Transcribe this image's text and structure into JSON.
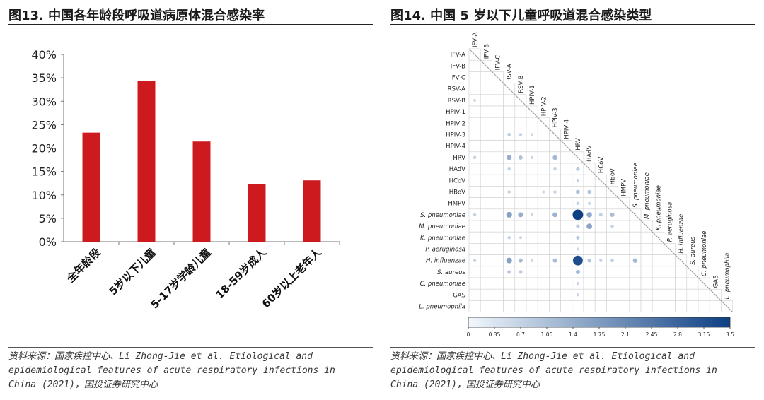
{
  "left": {
    "title": "图13. 中国各年龄段呼吸道病原体混合感染率",
    "source_lines": [
      "资料来源：国家疾控中心、Li Zhong-Jie et al. Etiological and",
      "epidemiological features of acute respiratory infections in",
      "China (2021)，国投证券研究中心"
    ],
    "chart_data": {
      "type": "bar",
      "categories": [
        "全年龄段",
        "5岁以下儿童",
        "5-17岁学龄儿童",
        "18-59岁成人",
        "60岁以上老年人"
      ],
      "values": [
        23.3,
        34.3,
        21.4,
        12.3,
        13.1
      ],
      "ylim": [
        0,
        40
      ],
      "yticks": [
        "0%",
        "5%",
        "10%",
        "15%",
        "20%",
        "25%",
        "30%",
        "35%",
        "40%"
      ],
      "bar_color": "#cc1a1f",
      "grid": false
    }
  },
  "right": {
    "title": "图14. 中国 5 岁以下儿童呼吸道混合感染类型",
    "source_lines": [
      "资料来源：国家疾控中心、Li Zhong-Jie et al. Etiological and",
      "epidemiological features of acute respiratory infections in",
      "China (2021)，国投证券研究中心"
    ],
    "chart_data": {
      "type": "heatmap",
      "labels": [
        "IFV-A",
        "IFV-B",
        "IFV-C",
        "RSV-A",
        "RSV-B",
        "HPIV-1",
        "HPIV-2",
        "HPIV-3",
        "HPIV-4",
        "HRV",
        "HAdV",
        "HCoV",
        "HBoV",
        "HMPV",
        "S. pneumoniae",
        "M. pneumoniae",
        "K. pneumoniae",
        "P. aeruginosa",
        "H. influenzae",
        "S. aureus",
        "C. pneumoniae",
        "GAS",
        "L. pneumophila"
      ],
      "italic_labels": [
        "S. pneumoniae",
        "M. pneumoniae",
        "K. pneumoniae",
        "P. aeruginosa",
        "H. influenzae",
        "S. aureus",
        "C. pneumoniae",
        "L. pneumophila"
      ],
      "cells": [
        {
          "row": "RSV-B",
          "col": "IFV-A",
          "value": 0.15
        },
        {
          "row": "HPIV-3",
          "col": "RSV-A",
          "value": 0.4
        },
        {
          "row": "HPIV-3",
          "col": "RSV-B",
          "value": 0.3
        },
        {
          "row": "HPIV-3",
          "col": "HPIV-1",
          "value": 0.2
        },
        {
          "row": "HRV",
          "col": "IFV-A",
          "value": 0.3
        },
        {
          "row": "HRV",
          "col": "RSV-A",
          "value": 1.1
        },
        {
          "row": "HRV",
          "col": "RSV-B",
          "value": 0.7
        },
        {
          "row": "HRV",
          "col": "HPIV-1",
          "value": 0.2
        },
        {
          "row": "HRV",
          "col": "HPIV-3",
          "value": 0.9
        },
        {
          "row": "HAdV",
          "col": "RSV-A",
          "value": 0.3
        },
        {
          "row": "HAdV",
          "col": "HPIV-3",
          "value": 0.3
        },
        {
          "row": "HAdV",
          "col": "HRV",
          "value": 0.5
        },
        {
          "row": "HCoV",
          "col": "HRV",
          "value": 0.3
        },
        {
          "row": "HBoV",
          "col": "RSV-A",
          "value": 0.3
        },
        {
          "row": "HBoV",
          "col": "HPIV-2",
          "value": 0.2
        },
        {
          "row": "HBoV",
          "col": "HPIV-3",
          "value": 0.3
        },
        {
          "row": "HBoV",
          "col": "HRV",
          "value": 0.7
        },
        {
          "row": "HBoV",
          "col": "HAdV",
          "value": 0.6
        },
        {
          "row": "HMPV",
          "col": "HRV",
          "value": 0.3
        },
        {
          "row": "HMPV",
          "col": "HAdV",
          "value": 0.2
        },
        {
          "row": "S. pneumoniae",
          "col": "IFV-A",
          "value": 0.3
        },
        {
          "row": "S. pneumoniae",
          "col": "RSV-A",
          "value": 1.4
        },
        {
          "row": "S. pneumoniae",
          "col": "RSV-B",
          "value": 1.1
        },
        {
          "row": "S. pneumoniae",
          "col": "HPIV-1",
          "value": 0.2
        },
        {
          "row": "S. pneumoniae",
          "col": "HPIV-3",
          "value": 1.0
        },
        {
          "row": "S. pneumoniae",
          "col": "HRV",
          "value": 3.5
        },
        {
          "row": "S. pneumoniae",
          "col": "HAdV",
          "value": 1.2
        },
        {
          "row": "S. pneumoniae",
          "col": "HCoV",
          "value": 0.4
        },
        {
          "row": "S. pneumoniae",
          "col": "HBoV",
          "value": 0.8
        },
        {
          "row": "M. pneumoniae",
          "col": "HRV",
          "value": 0.5
        },
        {
          "row": "M. pneumoniae",
          "col": "HAdV",
          "value": 1.3
        },
        {
          "row": "M. pneumoniae",
          "col": "HBoV",
          "value": 0.3
        },
        {
          "row": "K. pneumoniae",
          "col": "RSV-A",
          "value": 0.3
        },
        {
          "row": "K. pneumoniae",
          "col": "RSV-B",
          "value": 0.2
        },
        {
          "row": "K. pneumoniae",
          "col": "HRV",
          "value": 0.5
        },
        {
          "row": "P. aeruginosa",
          "col": "HRV",
          "value": 0.2
        },
        {
          "row": "H. influenzae",
          "col": "IFV-A",
          "value": 0.3
        },
        {
          "row": "H. influenzae",
          "col": "RSV-A",
          "value": 1.4
        },
        {
          "row": "H. influenzae",
          "col": "RSV-B",
          "value": 0.8
        },
        {
          "row": "H. influenzae",
          "col": "HPIV-1",
          "value": 0.2
        },
        {
          "row": "H. influenzae",
          "col": "HPIV-3",
          "value": 0.8
        },
        {
          "row": "H. influenzae",
          "col": "HRV",
          "value": 3.2
        },
        {
          "row": "H. influenzae",
          "col": "HAdV",
          "value": 0.6
        },
        {
          "row": "H. influenzae",
          "col": "HCoV",
          "value": 0.3
        },
        {
          "row": "H. influenzae",
          "col": "HBoV",
          "value": 0.4
        },
        {
          "row": "H. influenzae",
          "col": "S. pneumoniae",
          "value": 0.9
        },
        {
          "row": "S. aureus",
          "col": "RSV-A",
          "value": 0.5
        },
        {
          "row": "S. aureus",
          "col": "RSV-B",
          "value": 0.5
        },
        {
          "row": "S. aureus",
          "col": "HRV",
          "value": 0.8
        },
        {
          "row": "C. pneumoniae",
          "col": "HRV",
          "value": 0.2
        },
        {
          "row": "GAS",
          "col": "HRV",
          "value": 0.2
        }
      ],
      "colorbar": {
        "min": 0,
        "max": 3.5,
        "ticks": [
          "0",
          "0.35",
          "0.7",
          "1.05",
          "1.4",
          "1.75",
          "2.1",
          "2.45",
          "2.8",
          "3.15",
          "3.5"
        ],
        "color_low": "#f2f8fd",
        "color_high": "#0d3f83"
      }
    }
  }
}
